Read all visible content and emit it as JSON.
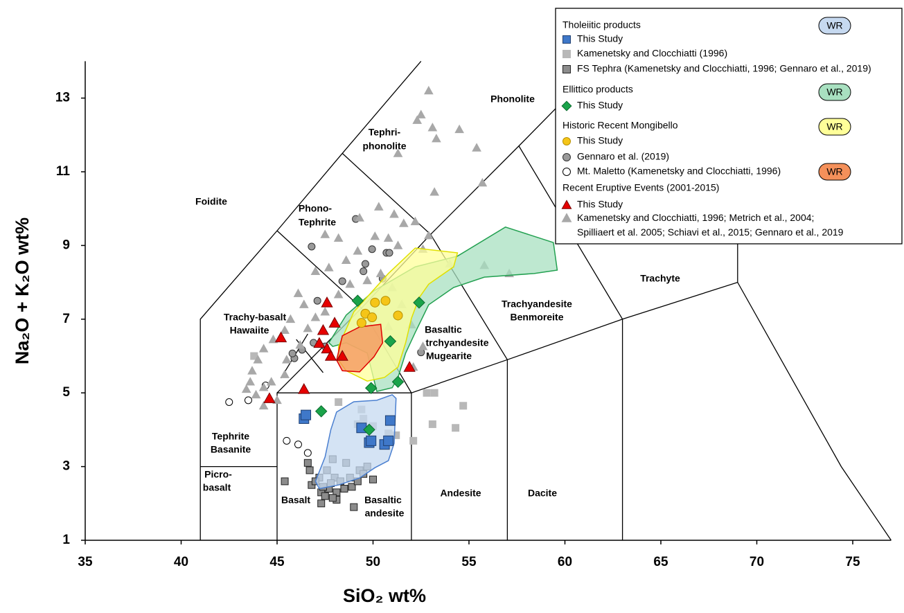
{
  "chart_data": {
    "type": "scatter",
    "xlabel": "SiO₂ wt%",
    "ylabel": "Na₂O + K₂O wt%",
    "xlim": [
      35,
      77
    ],
    "ylim": [
      1,
      14
    ],
    "xticks": [
      35,
      40,
      45,
      50,
      55,
      60,
      65,
      70,
      75
    ],
    "yticks": [
      1,
      3,
      5,
      7,
      9,
      11,
      13
    ],
    "boundaries": [
      [
        [
          41,
          1
        ],
        [
          41,
          7
        ],
        [
          45,
          9.4
        ],
        [
          48.4,
          11.5
        ],
        [
          52.5,
          14
        ]
      ],
      [
        [
          41,
          3
        ],
        [
          45,
          3
        ]
      ],
      [
        [
          45,
          1
        ],
        [
          45,
          5
        ],
        [
          52,
          5
        ],
        [
          52,
          1
        ]
      ],
      [
        [
          45,
          5
        ],
        [
          49.4,
          7.3
        ],
        [
          53,
          9.3
        ],
        [
          57.6,
          11.7
        ],
        [
          61,
          13.5
        ]
      ],
      [
        [
          49.4,
          7.3
        ],
        [
          52,
          5
        ],
        [
          57,
          5.9
        ],
        [
          63,
          7
        ],
        [
          69,
          8
        ],
        [
          74.4,
          3
        ],
        [
          77,
          1
        ]
      ],
      [
        [
          45,
          9.4
        ],
        [
          49.4,
          7.3
        ]
      ],
      [
        [
          48.4,
          11.5
        ],
        [
          53,
          9.3
        ],
        [
          57,
          5.9
        ]
      ],
      [
        [
          57.6,
          11.7
        ],
        [
          63,
          7
        ],
        [
          63,
          1
        ]
      ],
      [
        [
          57,
          5.9
        ],
        [
          57,
          1
        ]
      ],
      [
        [
          69,
          8
        ],
        [
          69,
          13
        ]
      ],
      [
        [
          46,
          6.45
        ],
        [
          47.4,
          5.55
        ]
      ],
      [
        [
          45.2,
          5.4
        ],
        [
          46.6,
          6.6
        ]
      ]
    ],
    "field_labels": [
      "Phonolite",
      "Tephri-",
      "phonolite",
      "Foidite",
      "Phono-",
      "Tephrite",
      "Trachy-basalt",
      "Hawaiite",
      "Basaltic",
      "trchyandesite",
      "Mugearite",
      "Trachyandesite",
      "Benmoreite",
      "Trachyte",
      "Tephrite",
      "Basanite",
      "Picro-",
      "basalt",
      "Basalt",
      "Basaltic",
      "andesite",
      "Andesite",
      "Dacite"
    ],
    "regions": [
      {
        "label": "WR",
        "color": "#c6d9f0",
        "edge": "#4a7fd0",
        "x": [
          47.0,
          47.5,
          47.8,
          48.1,
          49.0,
          50.2,
          51.0,
          51.2,
          51.1,
          50.8,
          50.1,
          49.3,
          48.2,
          47.2
        ],
        "y": [
          2.6,
          3.26,
          4.0,
          4.48,
          4.76,
          4.8,
          4.95,
          4.85,
          3.63,
          3.16,
          2.97,
          2.69,
          2.5,
          2.4
        ]
      },
      {
        "label": "WR",
        "color": "#a8e0c0",
        "edge": "#22a050",
        "x": [
          47.7,
          48.6,
          50.05,
          52.2,
          54.4,
          56.9,
          59.4,
          59.6,
          58.4,
          55.8,
          54.2,
          52.9,
          52.2,
          51.7,
          51.3,
          51.0,
          50.2,
          49.7,
          48.6,
          47.9
        ],
        "y": [
          6.36,
          7.11,
          7.77,
          8.42,
          8.71,
          9.5,
          9.08,
          8.33,
          8.24,
          8.14,
          7.86,
          7.39,
          6.64,
          6.08,
          5.42,
          5.14,
          5.04,
          6.08,
          6.36,
          6.26
        ]
      },
      {
        "label": "WR",
        "color": "#ffff99",
        "edge": "#e0e000",
        "x": [
          48.2,
          49.0,
          50.8,
          52.2,
          54.4,
          54.2,
          52.9,
          52.4,
          52.0,
          51.7,
          51.3,
          50.6,
          49.7,
          48.6,
          48.2
        ],
        "y": [
          6.26,
          7.2,
          8.24,
          8.93,
          8.8,
          8.42,
          7.95,
          7.58,
          7.02,
          6.36,
          5.7,
          5.42,
          5.32,
          5.6,
          5.89
        ]
      },
      {
        "label": "WR",
        "color": "#f4905a",
        "edge": "#e00000",
        "x": [
          48.1,
          48.4,
          49.3,
          50.4,
          50.5,
          50.05,
          49.3,
          48.4
        ],
        "y": [
          5.89,
          6.55,
          6.79,
          6.86,
          6.36,
          5.98,
          5.57,
          5.6
        ]
      }
    ],
    "groups": [
      {
        "name": "Tholeiitic products",
        "series": [
          {
            "name": "This Study",
            "marker": "square",
            "color": "#3f78c9",
            "edge": "#1f3f70",
            "x": [
              46.4,
              46.5,
              49.4,
              49.8,
              49.9,
              50.6,
              50.8,
              50.9
            ],
            "y": [
              4.3,
              4.4,
              4.05,
              3.65,
              3.7,
              3.6,
              3.7,
              4.25
            ]
          },
          {
            "name": "Kamenetsky and Clocchiatti (1996)",
            "marker": "square",
            "color": "#b8b8b8",
            "edge": "#b8b8b8",
            "x": [
              48.2,
              49.4,
              52.8,
              53.2,
              53.1,
              52.1,
              54.3,
              54.7,
              43.8,
              49.5,
              50.0,
              50.8,
              49.2,
              51.2
            ],
            "y": [
              4.75,
              4.55,
              5.0,
              5.0,
              4.15,
              3.7,
              4.05,
              4.65,
              6.0,
              4.3,
              4.1,
              3.9,
              4.15,
              3.85
            ]
          },
          {
            "name": "FS Tephra (Kamenetsky and Clocchiatti, 1996; Gennaro et al., 2019)",
            "marker": "square",
            "color": "#8c8c8c",
            "edge": "#222222",
            "x": [
              45.4,
              46.6,
              46.7,
              47.2,
              47.3,
              47.5,
              47.7,
              48.1,
              48.5,
              48.6,
              49.0,
              49.3,
              50.0,
              47.9,
              47.3,
              46.8,
              47.0,
              48.0,
              48.3,
              48.8,
              49.5,
              49.7,
              47.6,
              47.8,
              48.9,
              49.2,
              47.4,
              48.1,
              47.9
            ],
            "y": [
              2.6,
              3.1,
              2.9,
              2.7,
              2.3,
              2.2,
              2.4,
              2.3,
              2.4,
              3.1,
              1.9,
              2.9,
              2.65,
              3.2,
              2.0,
              2.5,
              2.6,
              2.7,
              2.6,
              2.7,
              2.8,
              3.0,
              2.9,
              2.55,
              2.45,
              2.6,
              2.45,
              2.1,
              2.15
            ]
          }
        ]
      },
      {
        "name": "Ellittico products",
        "series": [
          {
            "name": "This Study",
            "marker": "diamond",
            "color": "#1aa34a",
            "edge": "#0b6b2e",
            "x": [
              47.3,
              49.8,
              49.9,
              51.3,
              52.4,
              49.2,
              50.9
            ],
            "y": [
              4.5,
              4.0,
              5.13,
              5.3,
              7.45,
              7.5,
              6.4
            ]
          }
        ]
      },
      {
        "name": "Historic Recent Mongibello",
        "series": [
          {
            "name": "This Study",
            "marker": "circle",
            "color": "#f5c518",
            "edge": "#b89000",
            "x": [
              49.6,
              49.95,
              50.65,
              51.3,
              50.1,
              49.4
            ],
            "y": [
              7.15,
              7.05,
              7.5,
              7.1,
              7.45,
              6.9
            ]
          },
          {
            "name": "Gennaro et al. (2019)",
            "marker": "circle",
            "color": "#9a9a9a",
            "edge": "#333333",
            "x": [
              46.8,
              49.1,
              49.95,
              49.6,
              49.5,
              50.7,
              50.85,
              48.4,
              47.1,
              46.9,
              46.3,
              45.9,
              45.8,
              52.5,
              50.5,
              47.5
            ],
            "y": [
              8.97,
              9.72,
              8.9,
              8.5,
              8.3,
              8.8,
              8.8,
              8.03,
              7.5,
              6.36,
              6.17,
              5.94,
              6.07,
              6.1,
              8.1,
              6.26
            ]
          },
          {
            "name": "Mt. Maletto (Kamenetsky and Clocchiatti, 1996)",
            "marker": "circle",
            "color": "#ffffff",
            "edge": "#000000",
            "x": [
              42.5,
              43.5,
              45.5,
              46.1,
              46.6,
              44.4
            ],
            "y": [
              4.75,
              4.8,
              3.7,
              3.6,
              3.37,
              5.2
            ]
          }
        ]
      },
      {
        "name": "Recent Eruptive Events (2001-2015)",
        "series": [
          {
            "name": "This Study",
            "marker": "triangle",
            "color": "#e60000",
            "edge": "#7a0000",
            "x": [
              45.2,
              44.6,
              46.4,
              47.4,
              47.6,
              48.0,
              47.2,
              47.6,
              47.8,
              48.4,
              51.9
            ],
            "y": [
              6.5,
              4.85,
              5.1,
              6.7,
              7.45,
              6.9,
              6.35,
              6.2,
              6.0,
              6.0,
              5.7
            ]
          },
          {
            "name": "Kamenetsky and Clocchiatti, 1996; Metrich et al., 2004;\nSpilliaert et al. 2005; Schiavi et al., 2015; Gennaro et al., 2019",
            "marker": "triangle",
            "color": "#a8a8a8",
            "edge": "#a8a8a8",
            "x": [
              52.9,
              52.5,
              53.1,
              53.3,
              54.5,
              55.4,
              51.3,
              52.3,
              55.7,
              53.2,
              50.3,
              51.1,
              51.6,
              52.2,
              49.3,
              50.1,
              48.2,
              47.5,
              50.8,
              51.3,
              52.6,
              52.9,
              49.2,
              48.6,
              47.7,
              47.0,
              46.1,
              46.4,
              45.7,
              45.4,
              44.8,
              44.3,
              44.0,
              43.7,
              43.6,
              43.4,
              43.9,
              44.3,
              44.7,
              45.0,
              44.3,
              45.4,
              45.5,
              46.2,
              46.6,
              47.0,
              47.5,
              48.2,
              48.8,
              49.7,
              50.4,
              51.0,
              51.5,
              52.0,
              52.6,
              55.8,
              57.1,
              54.0,
              50.8,
              50.05,
              52.1
            ],
            "y": [
              13.2,
              12.55,
              12.2,
              11.9,
              12.15,
              11.65,
              11.5,
              12.4,
              10.7,
              10.45,
              10.05,
              9.85,
              9.6,
              9.65,
              9.75,
              9.25,
              9.2,
              9.3,
              9.2,
              9.0,
              8.9,
              9.27,
              8.85,
              8.6,
              8.4,
              8.3,
              7.7,
              7.4,
              7.0,
              6.7,
              6.45,
              6.2,
              5.9,
              5.6,
              5.3,
              5.1,
              4.95,
              5.15,
              5.3,
              4.8,
              4.65,
              5.5,
              5.9,
              6.3,
              6.75,
              7.05,
              7.2,
              7.67,
              7.95,
              8.05,
              8.24,
              7.86,
              7.4,
              6.85,
              6.26,
              8.46,
              8.24,
              8.5,
              6.8,
              7.1,
              5.7
            ]
          }
        ]
      }
    ]
  }
}
